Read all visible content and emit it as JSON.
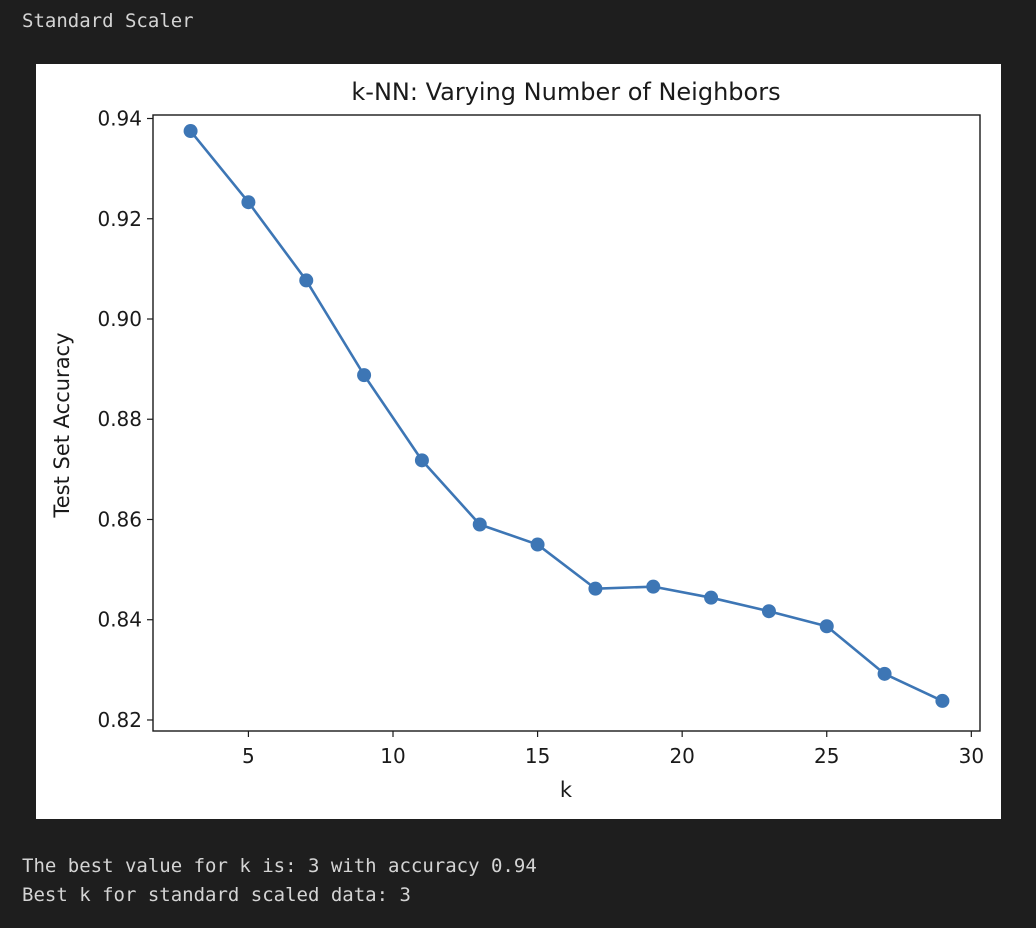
{
  "output": {
    "header": "Standard Scaler",
    "lines": [
      "The best value for k is: 3 with accuracy 0.94",
      "Best k for standard scaled data: 3"
    ]
  },
  "chart_data": {
    "type": "line",
    "title": "k-NN: Varying Number of Neighbors",
    "xlabel": "k",
    "ylabel": "Test Set Accuracy",
    "x": [
      3,
      5,
      7,
      9,
      11,
      13,
      15,
      17,
      19,
      21,
      23,
      25,
      27,
      29
    ],
    "y": [
      0.9375,
      0.9233,
      0.9077,
      0.8888,
      0.8718,
      0.859,
      0.855,
      0.8462,
      0.8466,
      0.8444,
      0.8417,
      0.8387,
      0.8292,
      0.8238
    ],
    "xlim": [
      1.7,
      30.3
    ],
    "ylim": [
      0.8178,
      0.9407
    ],
    "xticks": [
      5,
      10,
      15,
      20,
      25,
      30
    ],
    "yticks": [
      0.82,
      0.84,
      0.86,
      0.88,
      0.9,
      0.92,
      0.94
    ],
    "ytick_labels": [
      "0.82",
      "0.84",
      "0.86",
      "0.88",
      "0.90",
      "0.92",
      "0.94"
    ],
    "line_color": "#3d76b5",
    "marker": "circle",
    "grid": false,
    "legend": false
  }
}
